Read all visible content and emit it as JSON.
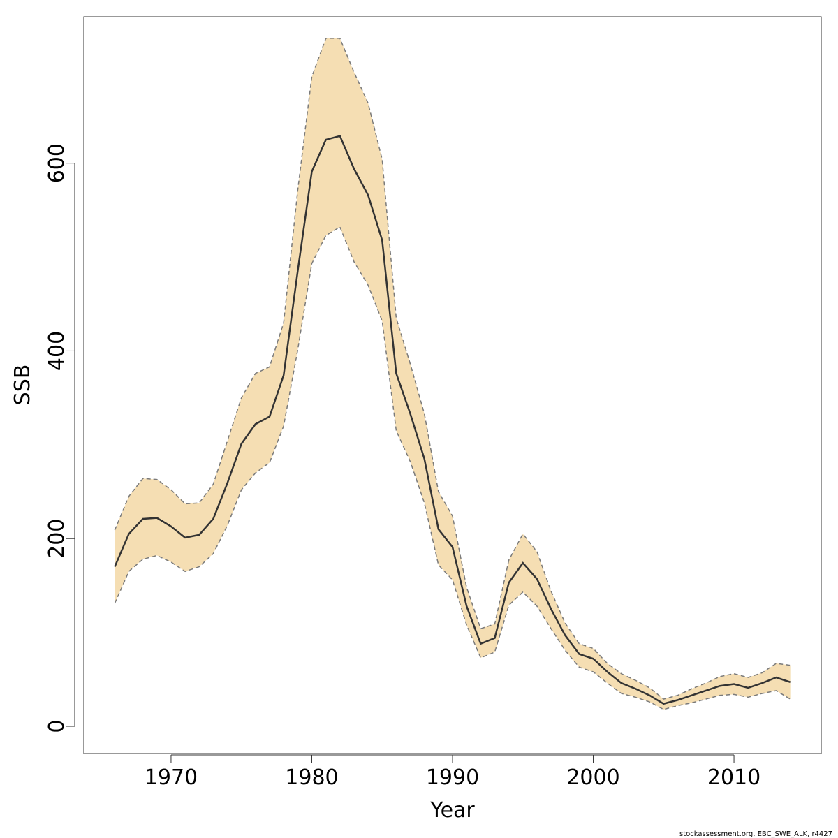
{
  "chart_data": {
    "type": "area",
    "xlabel": "Year",
    "ylabel": "SSB",
    "xlim": [
      1963.8,
      2016.2
    ],
    "ylim": [
      -29,
      756
    ],
    "x_ticks": [
      1970,
      1980,
      1990,
      2000,
      2010
    ],
    "y_ticks": [
      0,
      200,
      400,
      600
    ],
    "grid": false,
    "colors": {
      "band": "#f5deb3",
      "line": "#333333",
      "bound": "#7a7a7a"
    },
    "x": [
      1966,
      1967,
      1968,
      1969,
      1970,
      1971,
      1972,
      1973,
      1974,
      1975,
      1976,
      1977,
      1978,
      1979,
      1980,
      1981,
      1982,
      1983,
      1984,
      1985,
      1986,
      1987,
      1988,
      1989,
      1990,
      1991,
      1992,
      1993,
      1994,
      1995,
      1996,
      1997,
      1998,
      1999,
      2000,
      2001,
      2002,
      2003,
      2004,
      2005,
      2006,
      2007,
      2008,
      2009,
      2010,
      2011,
      2012,
      2013,
      2014
    ],
    "series": [
      {
        "role": "estimate",
        "values": [
          170,
          205,
          221,
          222,
          213,
          201,
          204,
          221,
          259,
          301,
          322,
          330,
          374,
          485,
          591,
          625,
          629,
          594,
          566,
          518,
          376,
          333,
          285,
          210,
          191,
          128,
          88,
          94,
          153,
          174,
          157,
          125,
          97,
          77,
          72,
          58,
          46,
          40,
          33,
          24,
          28,
          33,
          38,
          43,
          45,
          41,
          46,
          52,
          47
        ]
      },
      {
        "role": "upper",
        "values": [
          209,
          245,
          264,
          263,
          252,
          237,
          238,
          258,
          304,
          350,
          376,
          383,
          430,
          571,
          692,
          733,
          733,
          697,
          664,
          604,
          435,
          386,
          333,
          250,
          224,
          148,
          104,
          109,
          177,
          205,
          186,
          144,
          110,
          88,
          83,
          67,
          56,
          49,
          41,
          29,
          33,
          40,
          46,
          53,
          56,
          52,
          57,
          67,
          65
        ]
      },
      {
        "role": "lower",
        "values": [
          131,
          165,
          178,
          182,
          175,
          165,
          170,
          184,
          214,
          252,
          270,
          281,
          320,
          401,
          493,
          523,
          532,
          495,
          470,
          432,
          315,
          282,
          238,
          172,
          156,
          108,
          73,
          79,
          129,
          143,
          128,
          104,
          81,
          63,
          58,
          46,
          35,
          31,
          26,
          18,
          22,
          25,
          29,
          33,
          34,
          31,
          35,
          38,
          29
        ]
      }
    ]
  },
  "footer": {
    "note": "stockassessment.org, EBC_SWE_ALK, r4427"
  }
}
